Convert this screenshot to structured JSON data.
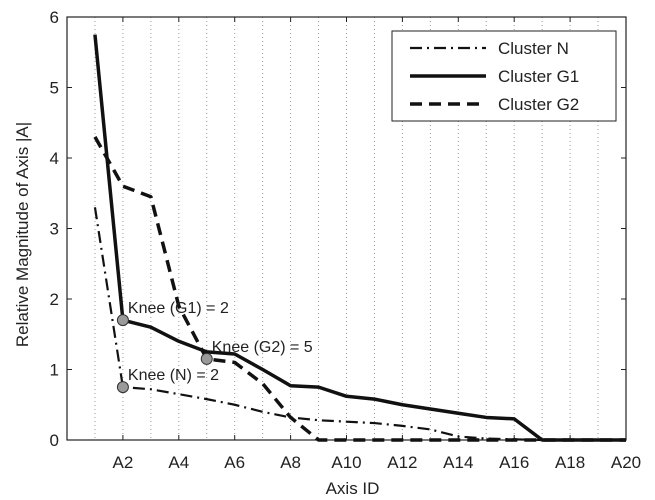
{
  "chart_data": {
    "type": "line",
    "title": "",
    "xlabel": "Axis ID",
    "ylabel": "Relative Magnitude of Axis |A|",
    "x": [
      1,
      2,
      3,
      4,
      5,
      6,
      7,
      8,
      9,
      10,
      11,
      12,
      13,
      14,
      15,
      16,
      17,
      18,
      19,
      20
    ],
    "x_tick_values": [
      2,
      4,
      6,
      8,
      10,
      12,
      14,
      16,
      18,
      20
    ],
    "x_tick_labels": [
      "A2",
      "A4",
      "A6",
      "A8",
      "A10",
      "A12",
      "A14",
      "A16",
      "A18",
      "A20"
    ],
    "xlim": [
      0,
      20
    ],
    "ylim": [
      0,
      6
    ],
    "y_ticks": [
      0,
      1,
      2,
      3,
      4,
      5,
      6
    ],
    "grid": "dotted vertical lines at each axis",
    "legend_position": "top-right",
    "series": [
      {
        "name": "Cluster N",
        "style": "dashdot",
        "values": [
          3.3,
          0.75,
          0.72,
          0.65,
          0.58,
          0.5,
          0.4,
          0.32,
          0.28,
          0.26,
          0.24,
          0.2,
          0.15,
          0.05,
          0.02,
          0.01,
          0.0,
          0.0,
          0.0,
          0.0
        ]
      },
      {
        "name": "Cluster G1",
        "style": "solid",
        "values": [
          5.75,
          1.7,
          1.6,
          1.4,
          1.25,
          1.22,
          1.0,
          0.77,
          0.75,
          0.62,
          0.58,
          0.5,
          0.44,
          0.38,
          0.32,
          0.3,
          0.0,
          0.0,
          0.0,
          0.0
        ]
      },
      {
        "name": "Cluster G2",
        "style": "dashed",
        "values": [
          4.3,
          3.6,
          3.45,
          1.9,
          1.15,
          1.1,
          0.8,
          0.32,
          0.0,
          0.0,
          0.0,
          0.0,
          0.0,
          0.0,
          0.0,
          0.0,
          0.0,
          0.0,
          0.0,
          0.0
        ]
      }
    ],
    "annotations": [
      {
        "text": "Knee (G1) = 2",
        "x": 2,
        "y": 1.7
      },
      {
        "text": "Knee (G2) = 5",
        "x": 5,
        "y": 1.15
      },
      {
        "text": "Knee (N) = 2",
        "x": 2,
        "y": 0.75
      }
    ]
  }
}
